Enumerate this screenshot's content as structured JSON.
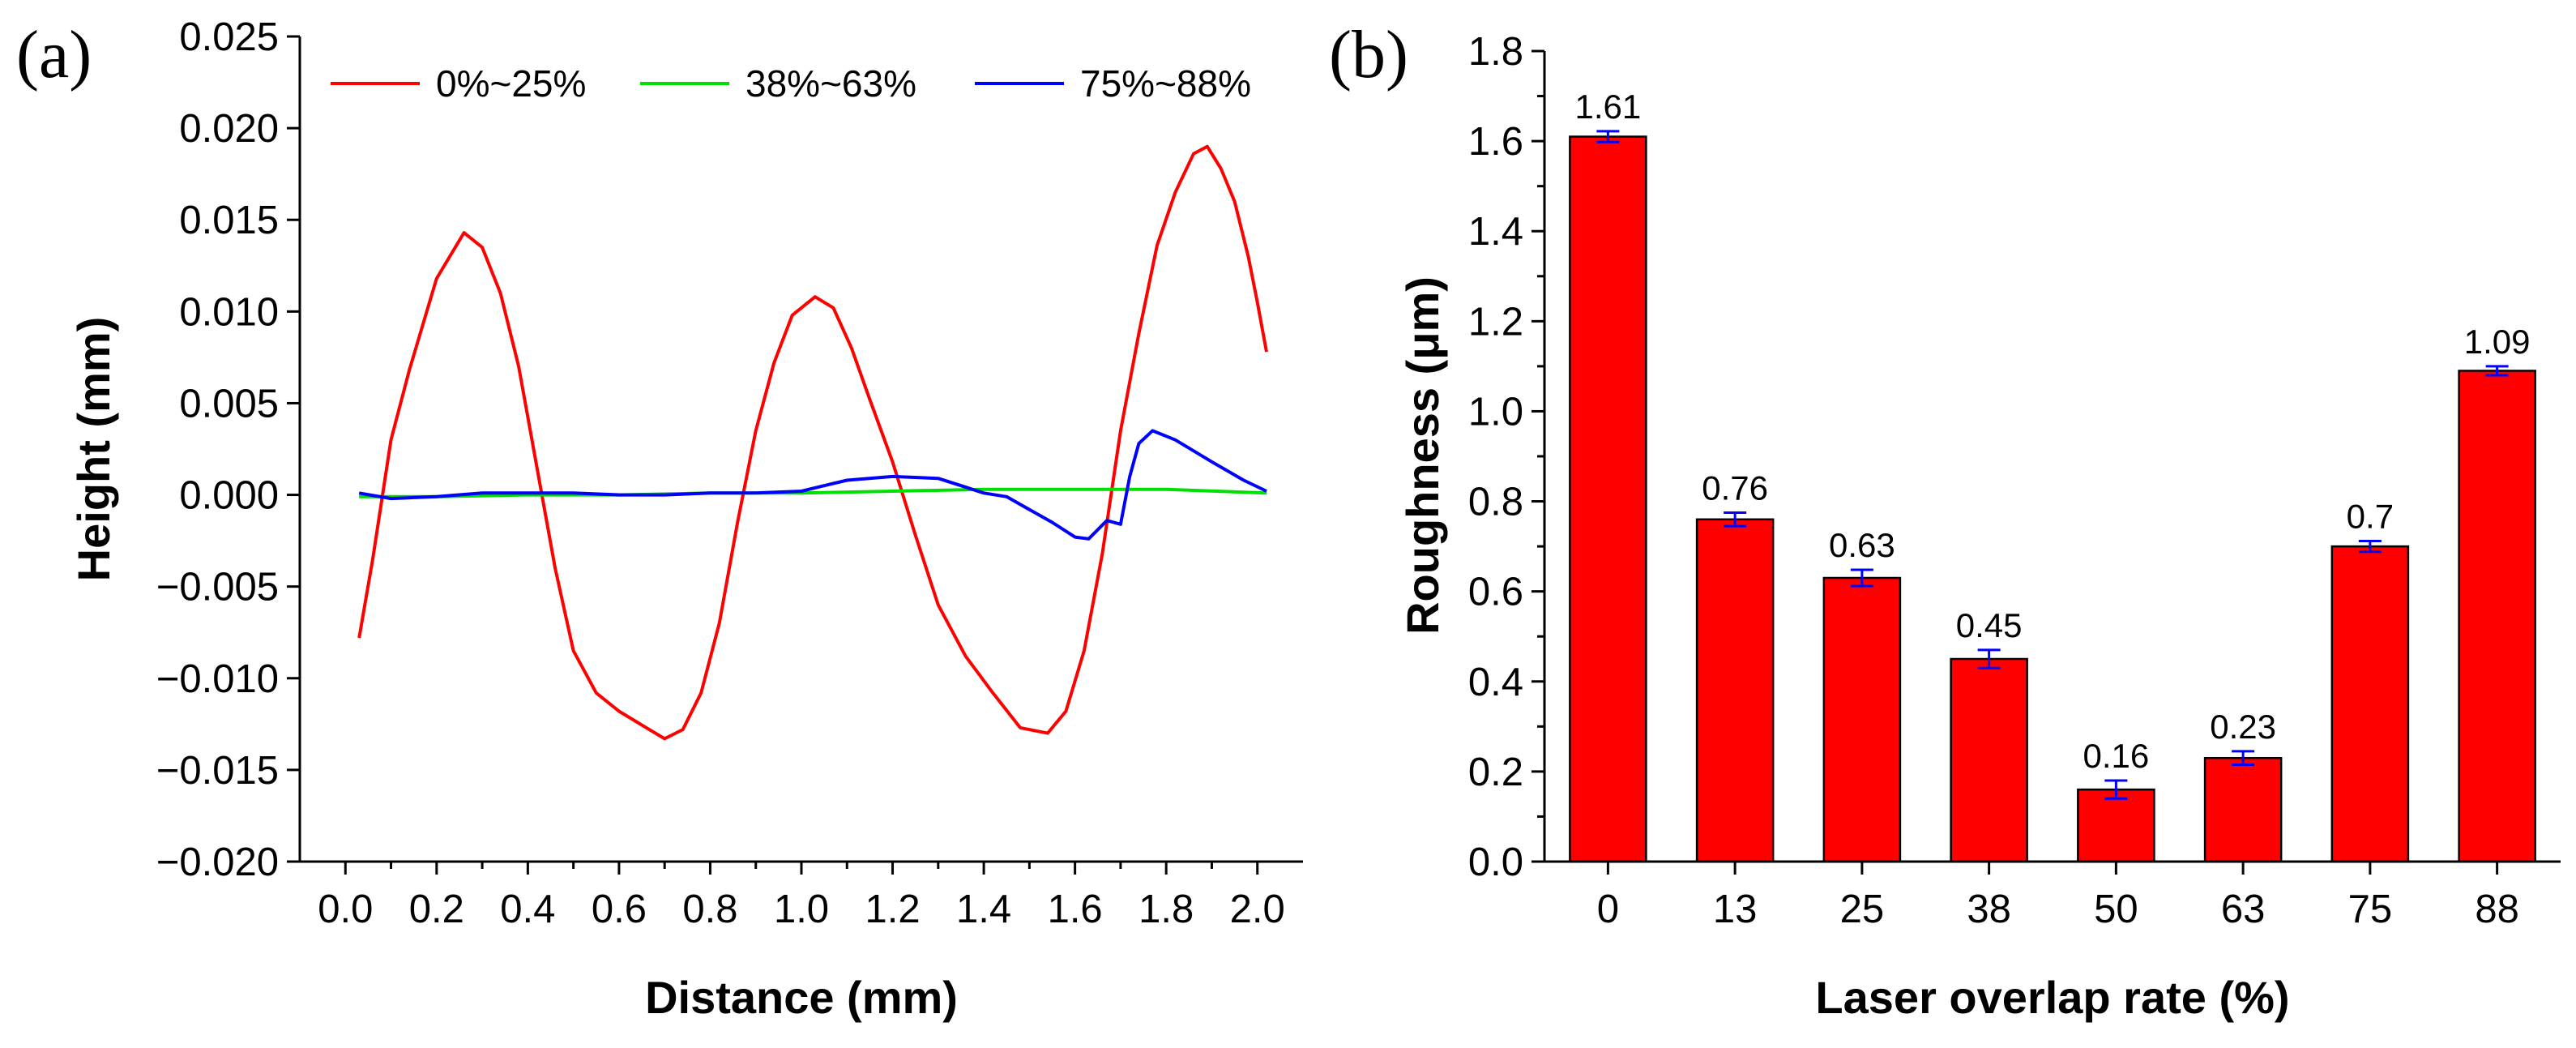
{
  "panels": {
    "a": "(a)",
    "b": "(b)"
  },
  "chart_data": [
    {
      "type": "line",
      "xlabel": "Distance (mm)",
      "ylabel": "Height (mm)",
      "xlim": [
        -0.1,
        2.1
      ],
      "ylim": [
        -0.02,
        0.025
      ],
      "xticks": [
        "0.0",
        "0.2",
        "0.4",
        "0.6",
        "0.8",
        "1.0",
        "1.2",
        "1.4",
        "1.6",
        "1.8",
        "2.0"
      ],
      "yticks": [
        "−0.020",
        "−0.015",
        "−0.010",
        "−0.005",
        "0.000",
        "0.005",
        "0.010",
        "0.015",
        "0.020",
        "0.025"
      ],
      "grid": false,
      "legend_position": "top",
      "series": [
        {
          "name": "0%~25%",
          "color": "#ff0000",
          "x": [
            0.03,
            0.06,
            0.1,
            0.14,
            0.2,
            0.26,
            0.3,
            0.34,
            0.38,
            0.42,
            0.46,
            0.5,
            0.55,
            0.6,
            0.66,
            0.7,
            0.74,
            0.78,
            0.82,
            0.86,
            0.9,
            0.94,
            0.98,
            1.03,
            1.07,
            1.11,
            1.15,
            1.2,
            1.25,
            1.3,
            1.36,
            1.42,
            1.48,
            1.54,
            1.58,
            1.62,
            1.66,
            1.7,
            1.74,
            1.78,
            1.82,
            1.86,
            1.89,
            1.92,
            1.95,
            1.98,
            2.0,
            2.02
          ],
          "y": [
            -0.0078,
            -0.0035,
            0.003,
            0.0068,
            0.0118,
            0.0143,
            0.0135,
            0.011,
            0.007,
            0.0015,
            -0.004,
            -0.0085,
            -0.0108,
            -0.0118,
            -0.0127,
            -0.0133,
            -0.0128,
            -0.0108,
            -0.007,
            -0.0015,
            0.0035,
            0.0072,
            0.0098,
            0.0108,
            0.0102,
            0.008,
            0.0052,
            0.0018,
            -0.0022,
            -0.006,
            -0.0088,
            -0.0108,
            -0.0127,
            -0.013,
            -0.0118,
            -0.0085,
            -0.0032,
            0.0035,
            0.0088,
            0.0136,
            0.0165,
            0.0186,
            0.019,
            0.0178,
            0.016,
            0.013,
            0.0105,
            0.0078
          ]
        },
        {
          "name": "38%~63%",
          "color": "#00e000",
          "x": [
            0.03,
            0.2,
            0.4,
            0.6,
            0.8,
            1.0,
            1.2,
            1.4,
            1.6,
            1.8,
            2.02
          ],
          "y": [
            -0.0001,
            -0.0001,
            0.0,
            0.0,
            0.0001,
            0.0001,
            0.0002,
            0.0003,
            0.0003,
            0.0003,
            0.0001
          ]
        },
        {
          "name": "75%~88%",
          "color": "#0000ff",
          "x": [
            0.03,
            0.1,
            0.2,
            0.3,
            0.4,
            0.5,
            0.6,
            0.7,
            0.8,
            0.9,
            1.0,
            1.05,
            1.1,
            1.2,
            1.3,
            1.35,
            1.4,
            1.45,
            1.5,
            1.55,
            1.6,
            1.63,
            1.67,
            1.7,
            1.72,
            1.74,
            1.77,
            1.82,
            1.9,
            1.97,
            2.02
          ],
          "y": [
            0.0001,
            -0.0002,
            -0.0001,
            0.0001,
            0.0001,
            0.0001,
            0.0,
            0.0,
            0.0001,
            0.0001,
            0.0002,
            0.0005,
            0.0008,
            0.001,
            0.0009,
            0.0005,
            0.0001,
            -0.0001,
            -0.0008,
            -0.0015,
            -0.0023,
            -0.0024,
            -0.0014,
            -0.0016,
            0.001,
            0.0028,
            0.0035,
            0.003,
            0.0018,
            0.0008,
            0.0002
          ]
        }
      ]
    },
    {
      "type": "bar",
      "xlabel": "Laser overlap rate (%)",
      "ylabel": "Roughness (μm)",
      "ylim": [
        0,
        1.8
      ],
      "yticks": [
        "0.0",
        "0.2",
        "0.4",
        "0.6",
        "0.8",
        "1.0",
        "1.2",
        "1.4",
        "1.6",
        "1.8"
      ],
      "categories": [
        "0",
        "13",
        "25",
        "38",
        "50",
        "63",
        "75",
        "88"
      ],
      "values": [
        1.61,
        0.76,
        0.63,
        0.45,
        0.16,
        0.23,
        0.7,
        1.09
      ],
      "labels": [
        "1.61",
        "0.76",
        "0.63",
        "0.45",
        "0.16",
        "0.23",
        "0.7",
        "1.09"
      ],
      "errors": [
        0.012,
        0.015,
        0.018,
        0.02,
        0.02,
        0.015,
        0.012,
        0.01
      ],
      "bar_color": "#ff0000",
      "error_color": "#0000ff",
      "grid": false
    }
  ]
}
